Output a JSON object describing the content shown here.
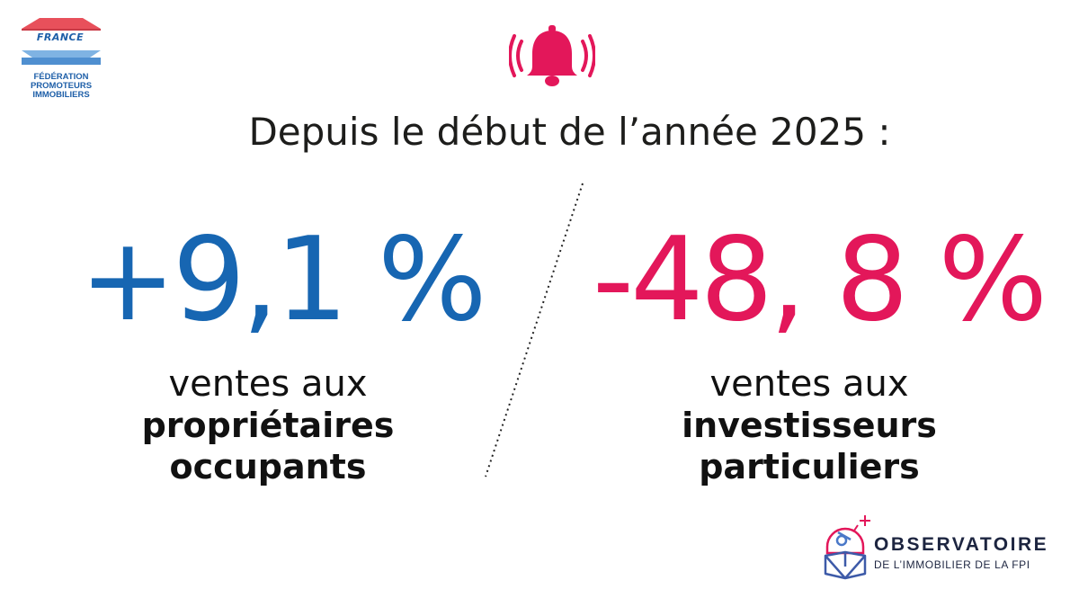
{
  "logo": {
    "badge": "FRANCE",
    "name_lines": [
      "FÉDÉRATION",
      "PROMOTEURS",
      "IMMOBILIERS"
    ]
  },
  "icon": "ringing-bell-icon",
  "headline": "Depuis le début de l’année 2025 :",
  "left": {
    "value": "+9,1 %",
    "caption_light": "ventes aux",
    "caption_bold_1": "propriétaires",
    "caption_bold_2": "occupants"
  },
  "right": {
    "value": "-48, 8 %",
    "caption_light": "ventes aux",
    "caption_bold_1": "investisseurs",
    "caption_bold_2": "particuliers"
  },
  "observatoire": {
    "title": "OBSERVATOIRE",
    "subtitle": "DE L’IMMOBILIER DE LA FPI"
  },
  "colors": {
    "blue": "#1766b2",
    "pink": "#e3175a",
    "text": "#1d1d1b"
  }
}
